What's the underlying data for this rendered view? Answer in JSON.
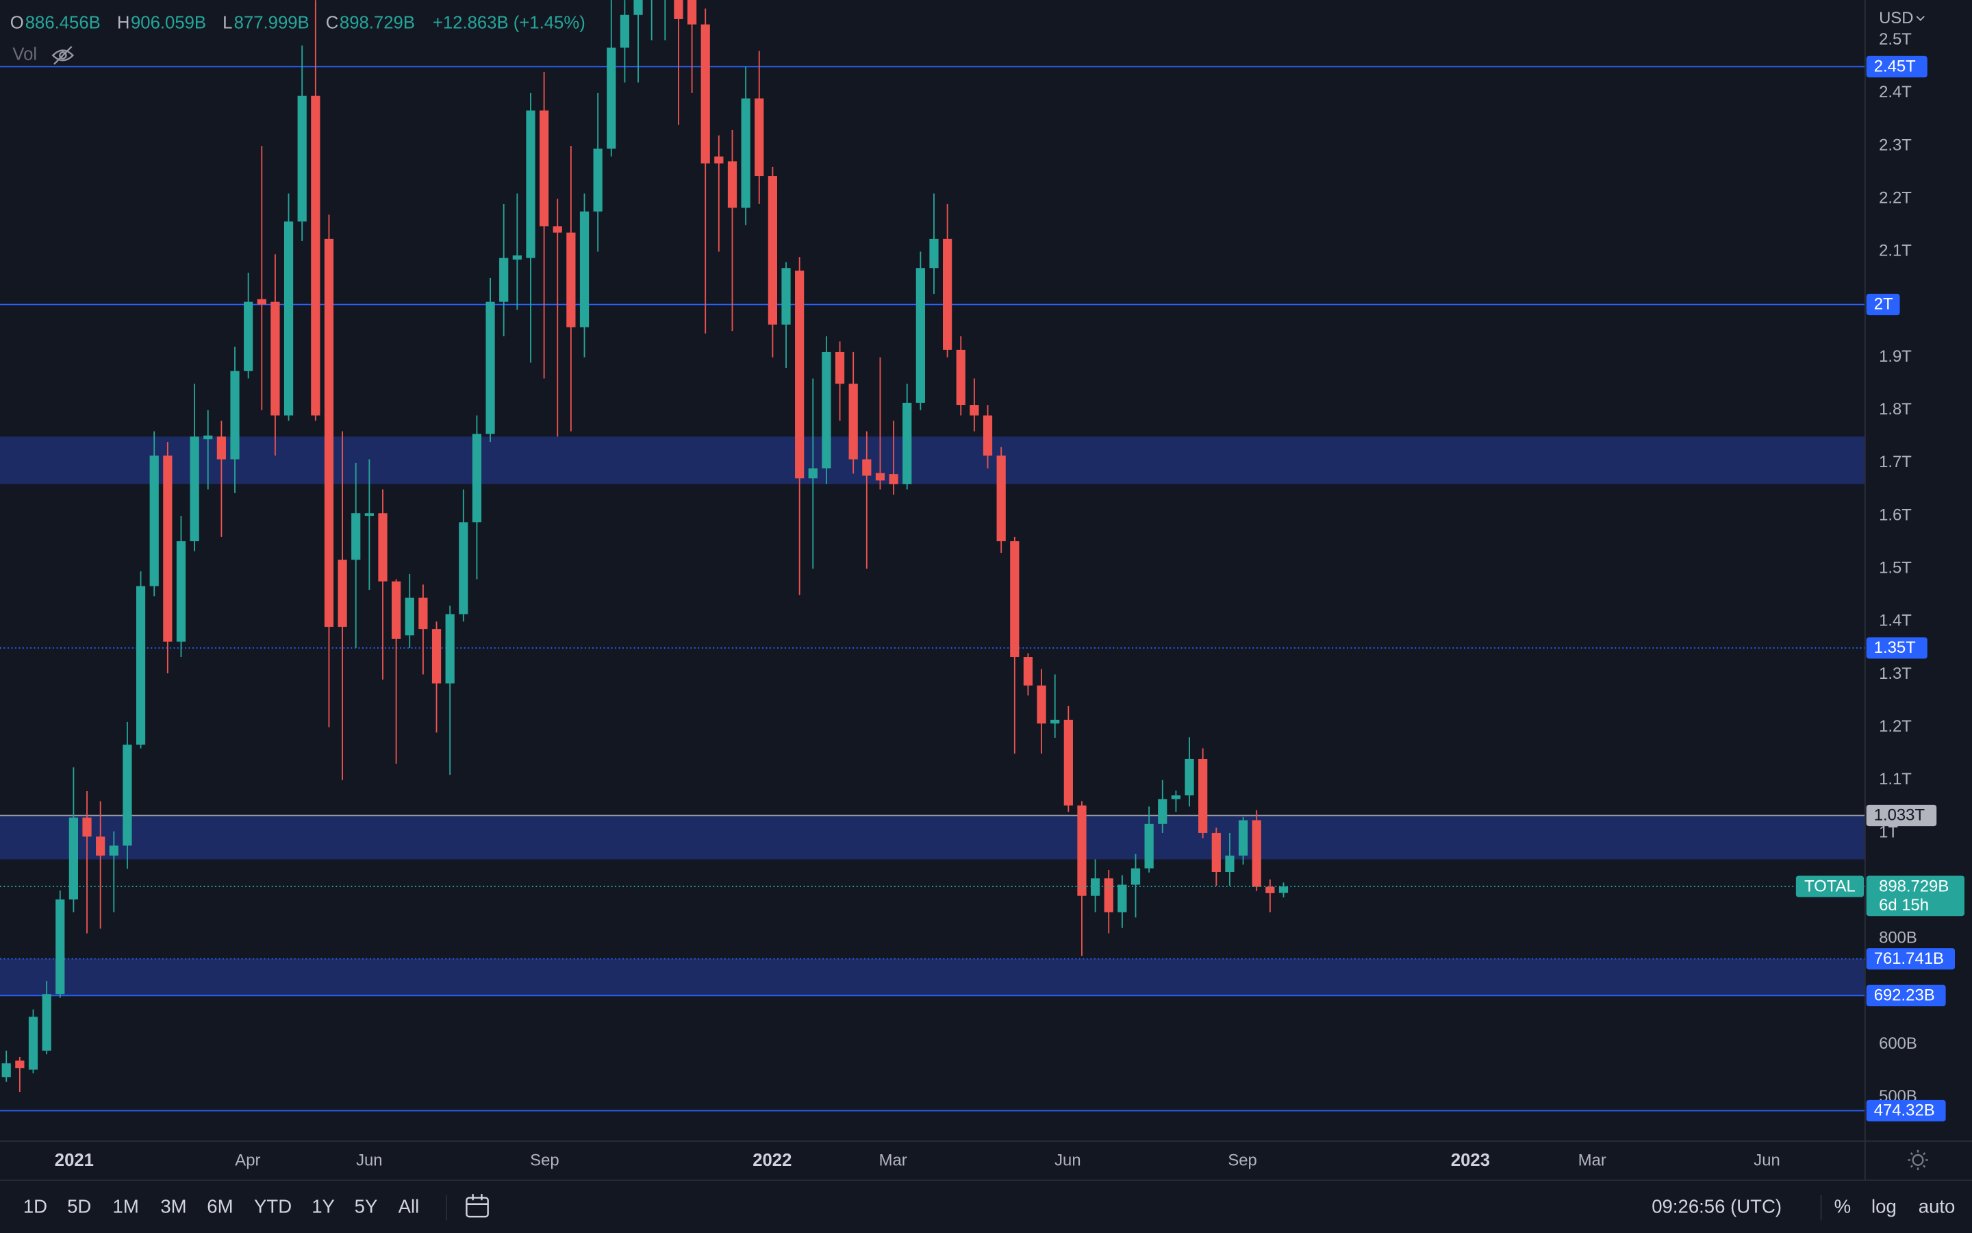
{
  "chart_data": {
    "type": "candlestick",
    "currency": "USD",
    "open": [
      538,
      569,
      552,
      588,
      695,
      874,
      1029,
      993,
      957,
      976,
      1167,
      1467,
      1714,
      1362,
      1552,
      1745,
      1750,
      1707,
      1874,
      2010,
      2005,
      1790,
      2157,
      2395,
      2124,
      1517,
      1517,
      1600,
      1605,
      1476,
      1374,
      1445,
      1386,
      1283,
      1414,
      1588,
      1755,
      2005,
      2085,
      2088,
      2367,
      2148,
      2136,
      1957,
      2176,
      2295,
      2486,
      2548,
      2600,
      2620,
      2700,
      2600,
      2530,
      2280,
      2271,
      2183,
      2390,
      2243,
      1962,
      2064,
      1671,
      1690,
      1910,
      1850,
      1707,
      1681,
      1679,
      1660,
      1814,
      2069,
      2124,
      1914,
      1810,
      1790,
      1714,
      1552,
      1333,
      1279,
      1207,
      1214,
      1052,
      881,
      914,
      850,
      902,
      933,
      1017,
      1064,
      1071,
      1140,
      1000,
      926,
      957,
      1024,
      898,
      886.456
    ],
    "high": [
      588,
      576,
      666,
      720,
      891,
      1124,
      1079,
      1060,
      1003,
      1210,
      1495,
      1760,
      1740,
      1600,
      1850,
      1800,
      1780,
      1920,
      2060,
      2300,
      2095,
      2210,
      2490,
      2576,
      2170,
      1760,
      1700,
      1707,
      1650,
      1480,
      1490,
      1470,
      1400,
      1430,
      1650,
      1790,
      2050,
      2190,
      2210,
      2400,
      2440,
      2200,
      2300,
      2210,
      2400,
      2576,
      2576,
      2650,
      2700,
      2700,
      2750,
      2650,
      2560,
      2320,
      2330,
      2450,
      2480,
      2260,
      2080,
      2090,
      1860,
      1940,
      1930,
      1910,
      1760,
      1900,
      1780,
      1850,
      2100,
      2210,
      2190,
      1940,
      1860,
      1810,
      1730,
      1560,
      1340,
      1310,
      1300,
      1240,
      1060,
      950,
      930,
      920,
      960,
      1050,
      1100,
      1080,
      1181,
      1160,
      1010,
      1000,
      1030,
      1043,
      912,
      906.059
    ],
    "low": [
      529,
      510,
      545,
      581,
      688,
      850,
      810,
      819,
      850,
      932,
      1160,
      1448,
      1302,
      1333,
      1533,
      1650,
      1560,
      1643,
      1860,
      1800,
      1714,
      1780,
      2120,
      1780,
      1200,
      1100,
      1350,
      1460,
      1290,
      1131,
      1350,
      1300,
      1190,
      1110,
      1400,
      1480,
      1740,
      1940,
      1990,
      1890,
      1860,
      1750,
      1760,
      1900,
      2100,
      2280,
      2420,
      2420,
      2500,
      2500,
      2340,
      2400,
      1945,
      2100,
      1950,
      2150,
      2190,
      1900,
      1880,
      1450,
      1500,
      1660,
      1780,
      1680,
      1500,
      1650,
      1640,
      1650,
      1800,
      2020,
      1900,
      1790,
      1760,
      1690,
      1530,
      1150,
      1260,
      1150,
      1180,
      1040,
      767,
      850,
      810,
      820,
      840,
      925,
      1000,
      1040,
      1050,
      990,
      900,
      900,
      940,
      890,
      850,
      877.999
    ],
    "close": [
      564,
      555,
      652,
      695,
      874,
      1029,
      993,
      957,
      976,
      1167,
      1467,
      1714,
      1362,
      1552,
      1750,
      1752,
      1707,
      1874,
      2005,
      2000,
      1790,
      2157,
      2395,
      1790,
      1390,
      1390,
      1605,
      1605,
      1476,
      1367,
      1445,
      1386,
      1283,
      1414,
      1588,
      1755,
      2005,
      2088,
      2093,
      2367,
      2148,
      2136,
      1957,
      2176,
      2295,
      2486,
      2548,
      2600,
      2620,
      2640,
      2540,
      2530,
      2267,
      2267,
      2183,
      2390,
      2243,
      1962,
      2069,
      1671,
      1690,
      1910,
      1850,
      1707,
      1676,
      1667,
      1660,
      1814,
      2069,
      2124,
      1914,
      1810,
      1790,
      1714,
      1552,
      1333,
      1279,
      1207,
      1214,
      1052,
      881,
      914,
      850,
      902,
      933,
      1017,
      1064,
      1071,
      1140,
      1000,
      926,
      957,
      1024,
      898,
      886,
      898.729
    ],
    "up_color": "#26a69a",
    "down_color": "#ef5350",
    "xlim": [
      -0.47,
      138.26
    ],
    "xticks": [
      {
        "value": 5.05,
        "label": "2021"
      },
      {
        "value": 17.96,
        "label": "Apr"
      },
      {
        "value": 27.0,
        "label": "Jun"
      },
      {
        "value": 40.04,
        "label": "Sep"
      },
      {
        "value": 56.97,
        "label": "2022"
      },
      {
        "value": 65.95,
        "label": "Mar"
      },
      {
        "value": 78.95,
        "label": "Jun"
      },
      {
        "value": 91.95,
        "label": "Sep"
      },
      {
        "value": 108.9,
        "label": "2023"
      },
      {
        "value": 117.96,
        "label": "Mar"
      },
      {
        "value": 130.96,
        "label": "Jun"
      }
    ],
    "ylim": [
      416.7,
      2576.2
    ],
    "yticks": [
      {
        "value": 2500,
        "label": "2.5T"
      },
      {
        "value": 2400,
        "label": "2.4T"
      },
      {
        "value": 2300,
        "label": "2.3T"
      },
      {
        "value": 2200,
        "label": "2.2T"
      },
      {
        "value": 2100,
        "label": "2.1T"
      },
      {
        "value": 1900,
        "label": "1.9T"
      },
      {
        "value": 1800,
        "label": "1.8T"
      },
      {
        "value": 1700,
        "label": "1.7T"
      },
      {
        "value": 1600,
        "label": "1.6T"
      },
      {
        "value": 1500,
        "label": "1.5T"
      },
      {
        "value": 1400,
        "label": "1.4T"
      },
      {
        "value": 1300,
        "label": "1.3T"
      },
      {
        "value": 1200,
        "label": "1.2T"
      },
      {
        "value": 1100,
        "label": "1.1T"
      },
      {
        "value": 1000,
        "label": "1T"
      },
      {
        "value": 800,
        "label": "800B"
      },
      {
        "value": 600,
        "label": "600B"
      },
      {
        "value": 500,
        "label": "500B"
      }
    ],
    "grid": false,
    "levels": [
      {
        "value": 2450,
        "label": "2.45T",
        "style": "solid",
        "color": "#2962ff"
      },
      {
        "value": 2000,
        "label": "2T",
        "style": "solid",
        "color": "#2962ff"
      },
      {
        "value": 1350,
        "label": "1.35T",
        "style": "dotted",
        "color": "#2962ff"
      },
      {
        "value": 1033,
        "label": "1.033T",
        "style": "solid",
        "color": "#9598a1"
      },
      {
        "value": 761.741,
        "label": "761.741B",
        "style": "dotted",
        "color": "#2962ff"
      },
      {
        "value": 692.23,
        "label": "692.23B",
        "style": "solid",
        "color": "#2962ff"
      },
      {
        "value": 474.32,
        "label": "474.32B",
        "style": "solid",
        "color": "#2962ff"
      }
    ],
    "zones": [
      [
        1660,
        1750
      ],
      [
        950,
        1033
      ],
      [
        692.23,
        761.741
      ]
    ],
    "zone_color": "#1e2f6e",
    "last_price": {
      "value": 898.729,
      "label": "898.729B",
      "symbol": "TOTAL",
      "countdown": "6d 15h",
      "color": "#26a69a"
    }
  },
  "ohlc_header": {
    "o_label": "O",
    "o": "886.456B",
    "h_label": "H",
    "h": "906.059B",
    "l_label": "L",
    "l": "877.999B",
    "c_label": "C",
    "c": "898.729B",
    "change": "+12.863B (+1.45%)"
  },
  "volume_label": "Vol",
  "toolbar": {
    "ranges": [
      "1D",
      "5D",
      "1M",
      "3M",
      "6M",
      "YTD",
      "1Y",
      "5Y",
      "All"
    ],
    "time": "09:26:56 (UTC)",
    "options": [
      "%",
      "log",
      "auto"
    ]
  }
}
